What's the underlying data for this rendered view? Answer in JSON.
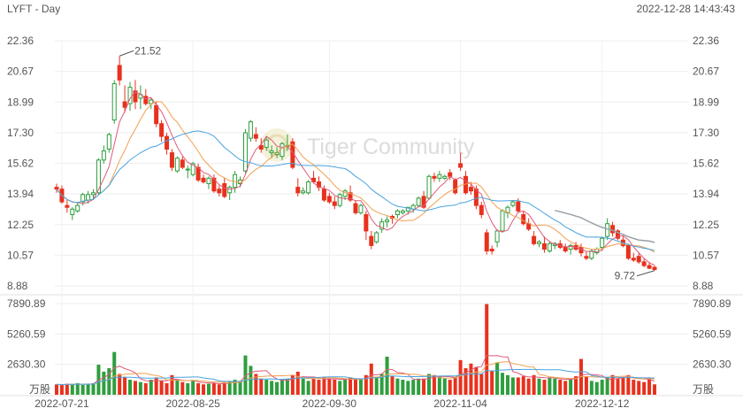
{
  "header": {
    "title": "LYFT - Day",
    "timestamp": "2022-12-28 14:43:43"
  },
  "watermark": {
    "text": "Tiger Community"
  },
  "colors": {
    "up": "#2e9e3e",
    "down": "#e8311d",
    "ma1": "#e05a7a",
    "ma2": "#f0a050",
    "ma3": "#4aa3df",
    "ma4": "#9aa0a6"
  },
  "chart_data": [
    {
      "type": "candlestick",
      "title": "",
      "y_ticks": [
        "22.36",
        "20.67",
        "18.99",
        "17.30",
        "15.62",
        "13.94",
        "12.25",
        "10.57",
        "8.88"
      ],
      "ylim": [
        8.88,
        22.36
      ],
      "x_ticks": [
        "2022-07-21",
        "2022-08-25",
        "2022-09-30",
        "2022-11-04",
        "2022-12-12"
      ],
      "annotations": {
        "high": "21.52",
        "low": "9.72"
      },
      "candles": [
        [
          14.3,
          14.5,
          14.0,
          14.2
        ],
        [
          14.2,
          14.4,
          13.4,
          13.5
        ],
        [
          13.3,
          13.6,
          12.9,
          13.2
        ],
        [
          12.8,
          13.2,
          12.5,
          13.1
        ],
        [
          13.0,
          13.5,
          12.9,
          13.3
        ],
        [
          13.5,
          14.0,
          13.3,
          13.9
        ],
        [
          13.6,
          14.1,
          13.4,
          13.9
        ],
        [
          13.9,
          14.2,
          13.6,
          14.0
        ],
        [
          14.0,
          15.9,
          13.9,
          15.8
        ],
        [
          15.8,
          16.6,
          15.6,
          16.3
        ],
        [
          16.4,
          17.3,
          16.2,
          17.2
        ],
        [
          18.0,
          20.2,
          17.8,
          20.0
        ],
        [
          21.0,
          21.52,
          19.9,
          20.2
        ],
        [
          19.0,
          19.9,
          18.4,
          18.7
        ],
        [
          18.9,
          20.1,
          18.5,
          19.8
        ],
        [
          19.6,
          20.2,
          18.6,
          19.0
        ],
        [
          19.2,
          19.9,
          18.6,
          19.4
        ],
        [
          19.3,
          19.7,
          18.8,
          18.9
        ],
        [
          18.9,
          19.2,
          18.6,
          19.1
        ],
        [
          18.8,
          19.0,
          17.6,
          17.8
        ],
        [
          17.8,
          18.0,
          16.8,
          17.1
        ],
        [
          17.1,
          17.3,
          16.1,
          16.4
        ],
        [
          16.2,
          16.4,
          15.2,
          15.4
        ],
        [
          15.2,
          16.0,
          15.1,
          15.9
        ],
        [
          15.8,
          16.0,
          15.3,
          15.4
        ],
        [
          15.3,
          15.5,
          14.8,
          15.3
        ],
        [
          15.0,
          15.7,
          14.9,
          15.6
        ],
        [
          15.4,
          15.6,
          14.6,
          14.7
        ],
        [
          14.8,
          15.0,
          14.5,
          14.6
        ],
        [
          14.5,
          14.9,
          14.2,
          14.8
        ],
        [
          14.8,
          15.0,
          14.0,
          14.1
        ],
        [
          14.2,
          14.4,
          13.8,
          14.0
        ],
        [
          14.5,
          14.8,
          13.7,
          13.8
        ],
        [
          14.0,
          14.4,
          13.6,
          14.3
        ],
        [
          14.3,
          15.2,
          14.0,
          15.0
        ],
        [
          14.5,
          14.9,
          14.3,
          14.7
        ],
        [
          15.2,
          17.5,
          15.0,
          17.3
        ],
        [
          17.0,
          18.0,
          16.8,
          17.9
        ],
        [
          17.2,
          17.6,
          16.8,
          17.0
        ],
        [
          16.6,
          17.0,
          16.2,
          16.4
        ],
        [
          16.5,
          17.1,
          16.3,
          16.9
        ],
        [
          16.2,
          16.6,
          15.9,
          16.3
        ],
        [
          16.1,
          16.5,
          15.9,
          16.2
        ],
        [
          16.0,
          16.8,
          15.8,
          16.7
        ],
        [
          16.6,
          17.2,
          16.3,
          16.6
        ],
        [
          16.8,
          17.0,
          15.3,
          15.4
        ],
        [
          14.3,
          14.8,
          13.8,
          14.0
        ],
        [
          14.0,
          14.3,
          13.9,
          14.1
        ],
        [
          14.0,
          14.7,
          13.9,
          14.6
        ],
        [
          14.8,
          15.2,
          14.5,
          14.6
        ],
        [
          14.6,
          14.9,
          14.1,
          14.3
        ],
        [
          14.2,
          14.4,
          13.5,
          13.6
        ],
        [
          13.8,
          14.0,
          13.4,
          13.5
        ],
        [
          13.5,
          13.8,
          13.1,
          13.3
        ],
        [
          13.3,
          14.0,
          13.2,
          13.9
        ],
        [
          13.8,
          14.2,
          13.6,
          14.1
        ],
        [
          14.0,
          14.4,
          13.5,
          13.6
        ],
        [
          13.4,
          13.6,
          12.8,
          12.9
        ],
        [
          12.9,
          13.4,
          12.8,
          13.3
        ],
        [
          12.8,
          13.0,
          11.4,
          11.9
        ],
        [
          11.6,
          11.9,
          10.9,
          11.1
        ],
        [
          11.3,
          11.9,
          11.2,
          11.8
        ],
        [
          12.0,
          12.6,
          11.8,
          12.4
        ],
        [
          12.4,
          12.7,
          12.1,
          12.5
        ],
        [
          12.7,
          12.8,
          12.3,
          12.6
        ],
        [
          12.8,
          13.1,
          12.6,
          13.0
        ],
        [
          12.9,
          13.1,
          12.8,
          13.0
        ],
        [
          13.0,
          13.2,
          12.8,
          13.2
        ],
        [
          13.1,
          13.4,
          12.9,
          13.3
        ],
        [
          13.3,
          13.8,
          13.2,
          13.7
        ],
        [
          13.8,
          14.1,
          13.1,
          13.2
        ],
        [
          13.7,
          15.0,
          13.6,
          14.9
        ],
        [
          14.9,
          15.1,
          14.6,
          14.8
        ],
        [
          14.8,
          15.2,
          14.6,
          15.0
        ],
        [
          14.8,
          15.0,
          14.7,
          14.9
        ],
        [
          15.1,
          15.3,
          14.7,
          14.9
        ],
        [
          14.7,
          14.8,
          13.9,
          14.0
        ],
        [
          15.6,
          16.2,
          15.2,
          15.4
        ],
        [
          14.9,
          15.2,
          13.9,
          14.0
        ],
        [
          14.3,
          14.6,
          13.9,
          14.1
        ],
        [
          14.2,
          14.4,
          13.1,
          13.3
        ],
        [
          13.3,
          13.5,
          12.6,
          12.8
        ],
        [
          11.8,
          12.0,
          10.6,
          10.8
        ],
        [
          10.9,
          11.1,
          10.6,
          10.8
        ],
        [
          11.3,
          12.0,
          11.0,
          11.9
        ],
        [
          11.9,
          13.1,
          11.8,
          13.0
        ],
        [
          12.9,
          13.3,
          12.6,
          13.2
        ],
        [
          13.3,
          13.6,
          13.2,
          13.5
        ],
        [
          13.5,
          13.7,
          12.9,
          13.0
        ],
        [
          12.8,
          13.0,
          12.2,
          12.3
        ],
        [
          12.3,
          12.6,
          11.9,
          12.0
        ],
        [
          11.6,
          11.9,
          11.1,
          11.2
        ],
        [
          11.2,
          11.4,
          11.0,
          11.3
        ],
        [
          11.2,
          11.6,
          10.7,
          10.9
        ],
        [
          10.8,
          11.3,
          10.7,
          11.2
        ],
        [
          11.1,
          11.3,
          10.9,
          11.2
        ],
        [
          11.2,
          11.4,
          10.9,
          11.0
        ],
        [
          11.0,
          11.2,
          10.7,
          10.8
        ],
        [
          10.9,
          11.2,
          10.6,
          11.1
        ],
        [
          11.1,
          11.3,
          10.8,
          10.9
        ],
        [
          11.0,
          11.2,
          10.5,
          10.7
        ],
        [
          10.5,
          10.8,
          10.3,
          10.4
        ],
        [
          10.4,
          10.9,
          10.3,
          10.8
        ],
        [
          10.7,
          11.0,
          10.6,
          10.9
        ],
        [
          11.0,
          11.6,
          10.8,
          11.5
        ],
        [
          11.6,
          12.6,
          11.4,
          12.3
        ],
        [
          12.2,
          12.4,
          11.6,
          11.8
        ],
        [
          11.9,
          12.0,
          11.4,
          11.5
        ],
        [
          11.4,
          11.6,
          11.0,
          11.1
        ],
        [
          11.1,
          11.2,
          10.3,
          10.4
        ],
        [
          10.4,
          10.7,
          10.2,
          10.3
        ],
        [
          10.5,
          10.7,
          10.1,
          10.2
        ],
        [
          10.2,
          10.4,
          9.9,
          10.0
        ],
        [
          10.0,
          10.2,
          9.8,
          9.85
        ],
        [
          9.9,
          10.0,
          9.72,
          9.78
        ]
      ]
    },
    {
      "type": "bar",
      "title": "",
      "unit_label": "万股",
      "y_ticks": [
        "7890.89",
        "5260.59",
        "2630.30"
      ],
      "ylim": [
        0,
        7890.89
      ],
      "volumes": [
        900,
        850,
        950,
        900,
        1000,
        850,
        950,
        1000,
        2600,
        2000,
        2300,
        3700,
        1800,
        1500,
        1300,
        1200,
        1100,
        1000,
        1300,
        1500,
        1200,
        1000,
        1700,
        1300,
        1100,
        1000,
        1200,
        1000,
        900,
        950,
        1000,
        900,
        1100,
        1200,
        1300,
        1200,
        3400,
        2500,
        1800,
        1400,
        1300,
        1200,
        1100,
        1300,
        1400,
        1700,
        2000,
        1400,
        1200,
        1400,
        1300,
        1500,
        1400,
        1300,
        1200,
        1300,
        1500,
        1400,
        1300,
        1700,
        2700,
        1500,
        1800,
        3300,
        1600,
        1400,
        1300,
        1200,
        1300,
        1400,
        1400,
        1800,
        1700,
        1600,
        1400,
        1300,
        1500,
        3000,
        2300,
        2700,
        2400,
        1800,
        7850,
        2100,
        2800,
        1900,
        1700,
        1500,
        1500,
        1600,
        1400,
        1700,
        1400,
        1300,
        1500,
        1400,
        1300,
        1200,
        1300,
        1600,
        3100,
        1600,
        1200,
        1100,
        1300,
        1500,
        1700,
        1400,
        1500,
        1700,
        1300,
        1200,
        1100,
        1400,
        900
      ]
    }
  ]
}
